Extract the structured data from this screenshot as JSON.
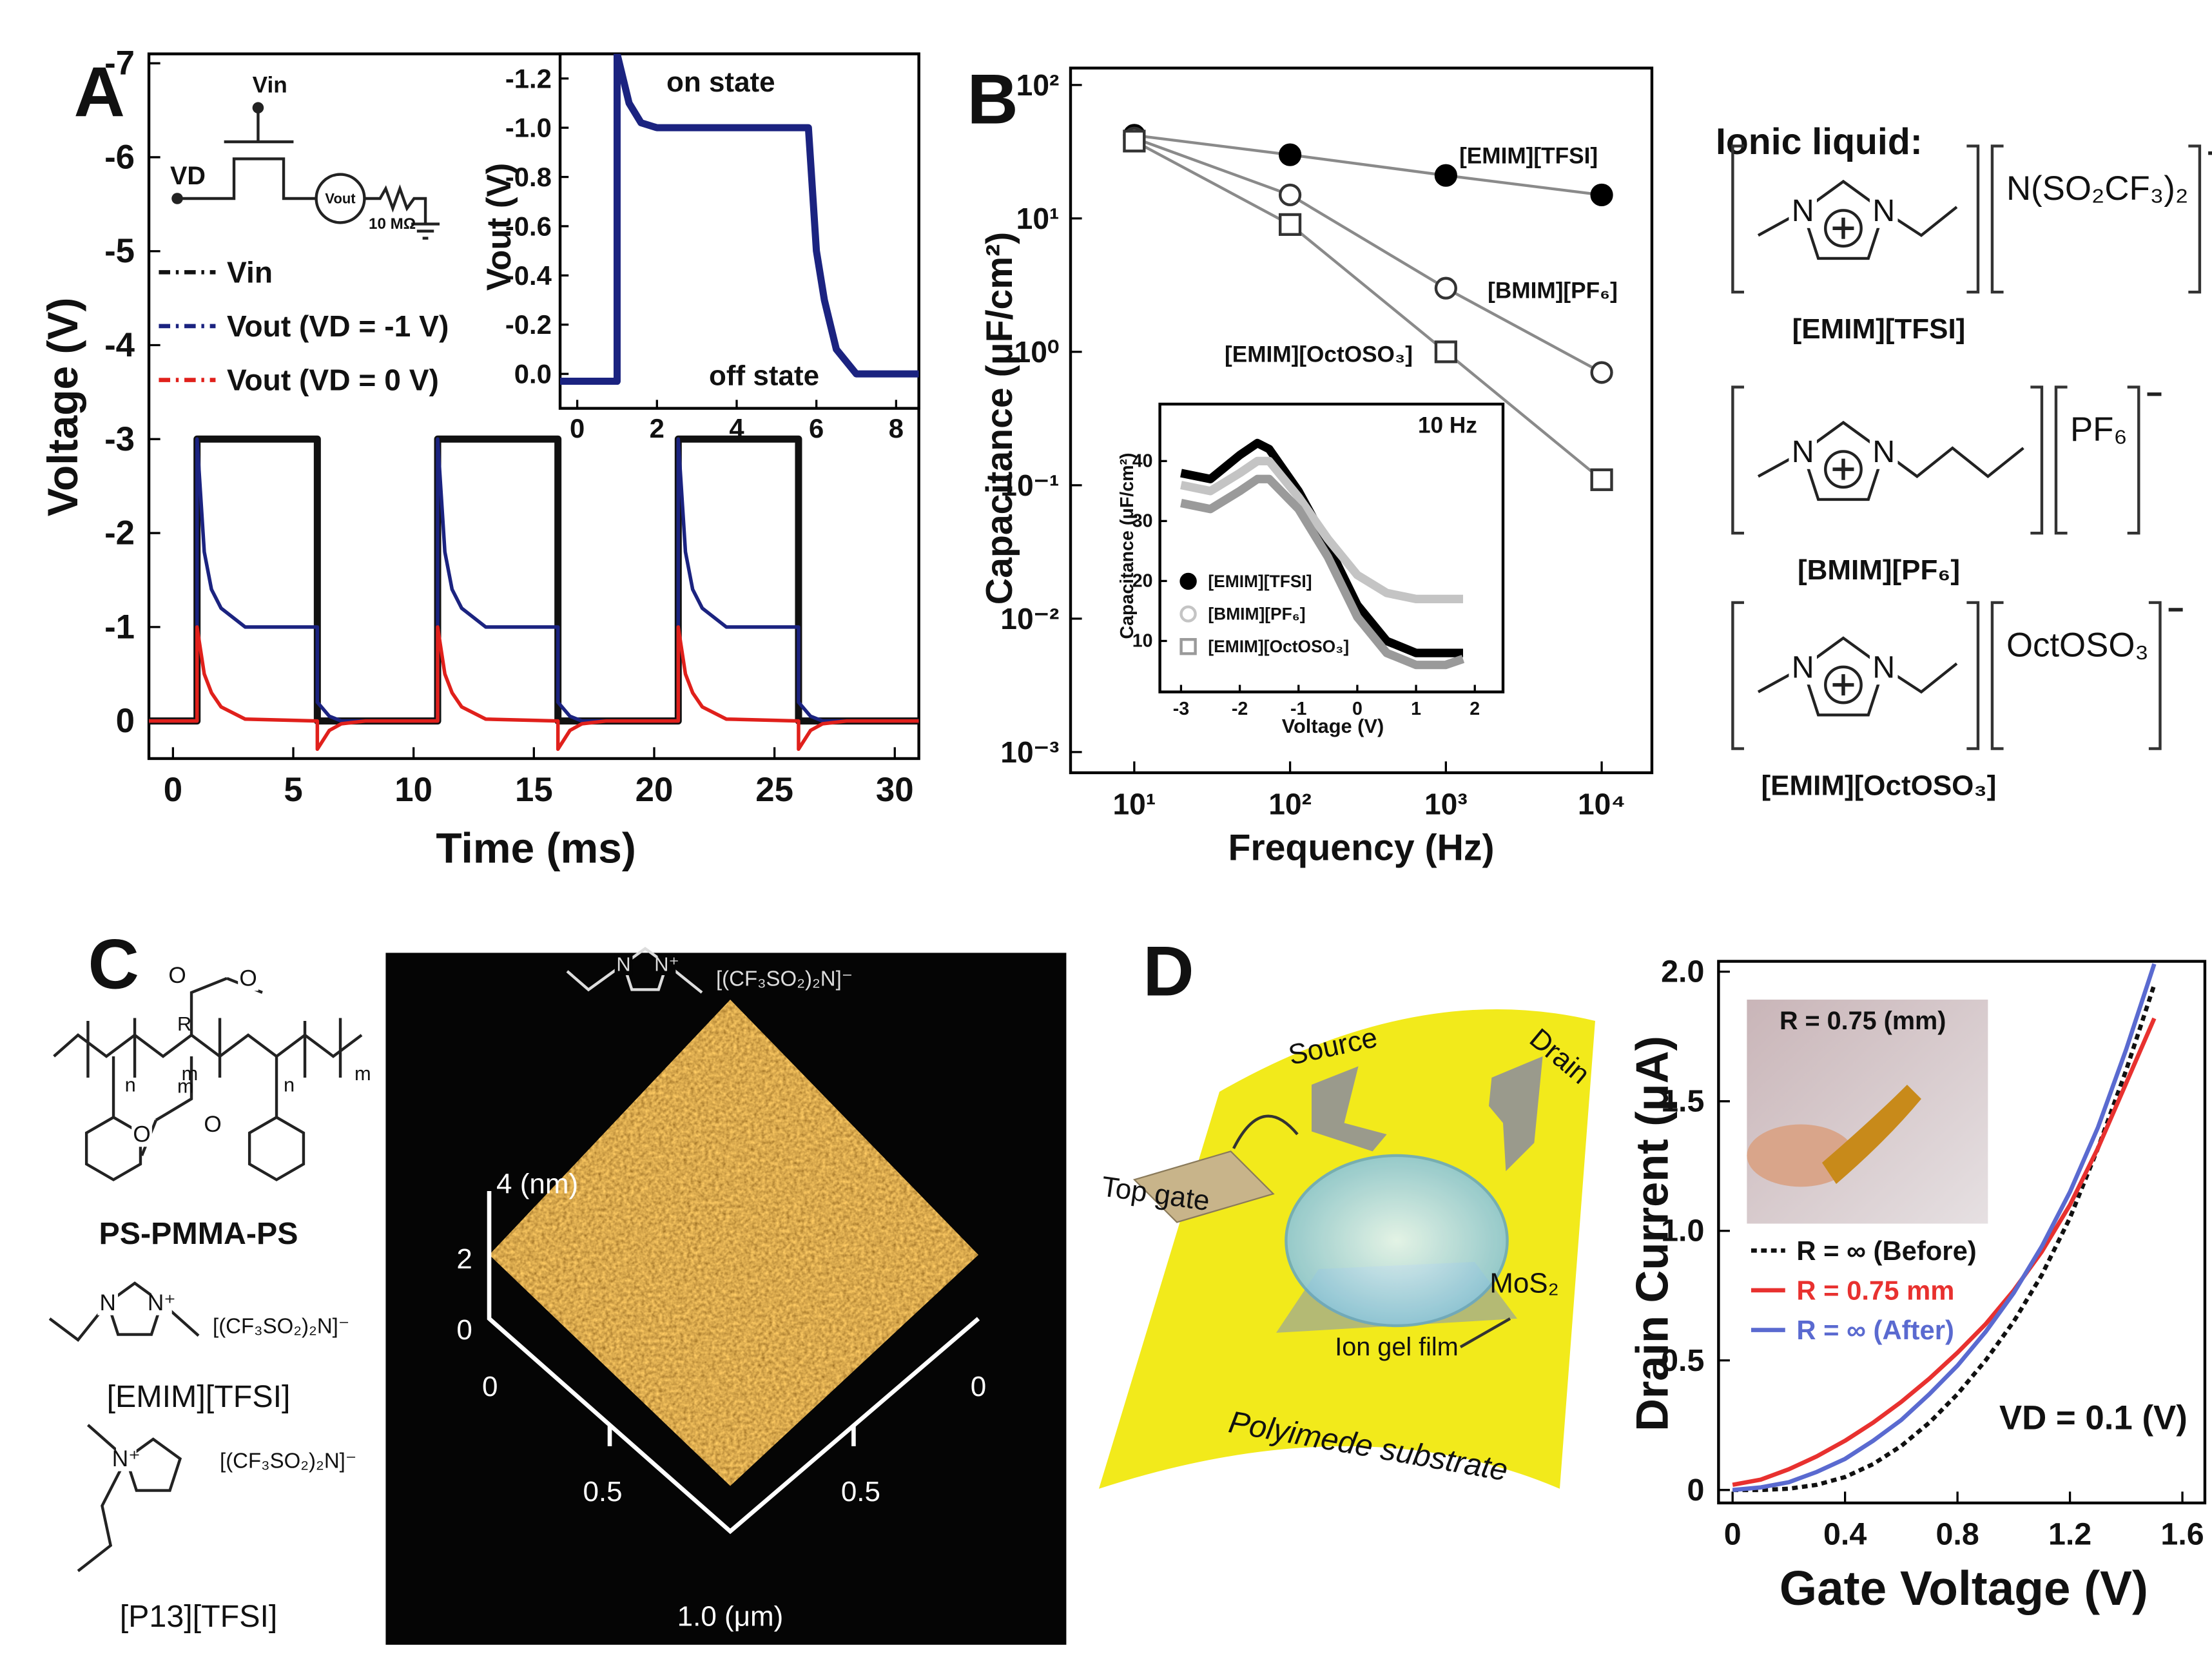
{
  "panels": [
    "A",
    "B",
    "C",
    "D"
  ],
  "chart_data": [
    {
      "type": "line",
      "xlabel": "Time (ms)",
      "ylabel": "Voltage (V)",
      "xlim": [
        -1,
        31
      ],
      "ylim": [
        0.4,
        -7.1
      ],
      "xticks": [
        0,
        5,
        10,
        15,
        20,
        25,
        30
      ],
      "yticks": [
        0,
        -1,
        -2,
        -3,
        -4,
        -5,
        -6,
        -7
      ],
      "x": [
        -1,
        1,
        1,
        1.3,
        1.6,
        2,
        3,
        6,
        6,
        6.5,
        7,
        8,
        11,
        11,
        11.3,
        11.6,
        12,
        13,
        16,
        16,
        16.5,
        17,
        18,
        21,
        21,
        21.3,
        21.6,
        22,
        23,
        26,
        26,
        26.5,
        27,
        28,
        31
      ],
      "series": [
        {
          "name": "Vin",
          "color": "#111111",
          "values": [
            0,
            0,
            -3,
            -3,
            -3,
            -3,
            -3,
            -3,
            0,
            0,
            0,
            0,
            0,
            -3,
            -3,
            -3,
            -3,
            -3,
            -3,
            0,
            0,
            0,
            0,
            0,
            -3,
            -3,
            -3,
            -3,
            -3,
            -3,
            0,
            0,
            0,
            0,
            0
          ]
        },
        {
          "name": "Vout (VD = -1 V)",
          "color": "#1b2380",
          "values": [
            0,
            0,
            -3,
            -1.8,
            -1.4,
            -1.2,
            -1.0,
            -1.0,
            -0.2,
            -0.05,
            0,
            0,
            0,
            -3,
            -1.8,
            -1.4,
            -1.2,
            -1.0,
            -1.0,
            -0.2,
            -0.05,
            0,
            0,
            0,
            -3,
            -1.8,
            -1.4,
            -1.2,
            -1.0,
            -1.0,
            -0.2,
            -0.05,
            0,
            0,
            0
          ]
        },
        {
          "name": "Vout (VD = 0 V)",
          "color": "#e0201b",
          "values": [
            0,
            0,
            -1,
            -0.5,
            -0.3,
            -0.15,
            -0.02,
            0,
            0.3,
            0.1,
            0.03,
            0,
            0,
            -1,
            -0.5,
            -0.3,
            -0.15,
            -0.02,
            0,
            0.3,
            0.1,
            0.03,
            0,
            0,
            -1,
            -0.5,
            -0.3,
            -0.15,
            -0.02,
            0,
            0.3,
            0.1,
            0.03,
            0,
            0
          ]
        }
      ]
    },
    {
      "type": "line",
      "ylabel": "Vout (V)",
      "xlim": [
        -0.43,
        8.57
      ],
      "ylim": [
        0.14,
        -1.3
      ],
      "xticks": [
        0,
        2,
        4,
        6,
        8
      ],
      "yticks": [
        -1.2,
        {
          "value": -1,
          "label": "-1.0"
        },
        -0.8,
        -0.6,
        -0.4,
        -0.2,
        {
          "value": 0,
          "label": "0.0"
        }
      ],
      "annotations": [
        "on state",
        "off state"
      ],
      "x": [
        -0.43,
        1,
        1,
        1.3,
        1.6,
        2,
        5.8,
        6,
        6.2,
        6.5,
        7,
        8.57
      ],
      "series": [
        {
          "color": "#1b2380",
          "values": [
            0.03,
            0.03,
            -1.3,
            -1.1,
            -1.02,
            -1.0,
            -1.0,
            -0.5,
            -0.3,
            -0.1,
            0.0,
            0.0
          ]
        }
      ]
    },
    {
      "type": "line",
      "xscale": "log",
      "yscale": "log",
      "xlabel": "Frequency (Hz)",
      "ylabel": "Capacitance (μF/cm²)",
      "xlim": [
        3.9,
        21000
      ],
      "ylim": [
        0.0007,
        134
      ],
      "xticks": [
        {
          "value": 10,
          "label": "10¹"
        },
        {
          "value": 100,
          "label": "10²"
        },
        {
          "value": 1000,
          "label": "10³"
        },
        {
          "value": 10000,
          "label": "10⁴"
        }
      ],
      "yticks": [
        {
          "value": 0.001,
          "label": "10⁻³"
        },
        {
          "value": 0.01,
          "label": "10⁻²"
        },
        {
          "value": 0.1,
          "label": "10⁻¹"
        },
        {
          "value": 1,
          "label": "10⁰"
        },
        {
          "value": 10,
          "label": "10¹"
        },
        {
          "value": 100,
          "label": "10²"
        }
      ],
      "x": [
        10,
        100,
        1000,
        10000
      ],
      "line_color": "#8a8a8a",
      "series": [
        {
          "name": "[EMIM][TFSI]",
          "color": "#000000",
          "marker": "circle-filled",
          "values": [
            42,
            30,
            21,
            15
          ]
        },
        {
          "name": "[BMIM][PF₆]",
          "color": "#333333",
          "marker": "circle-open",
          "values": [
            40,
            15,
            3,
            0.7
          ]
        },
        {
          "name": "[EMIM][OctOSO₃]",
          "color": "#333333",
          "marker": "square-open",
          "values": [
            38,
            9,
            1.0,
            0.11
          ]
        }
      ]
    },
    {
      "type": "line",
      "xlabel": "Voltage (V)",
      "ylabel": "Capacitance (μF/cm²)",
      "xlim": [
        -3.36,
        2.48
      ],
      "ylim": [
        1.5,
        49.5
      ],
      "xticks": [
        -3,
        -2,
        -1,
        0,
        1,
        2
      ],
      "yticks": [
        10,
        20,
        30,
        40
      ],
      "annotations": [
        "10 Hz"
      ],
      "x": [
        -3,
        -2.5,
        -2,
        -1.7,
        -1.5,
        -1,
        -0.5,
        0,
        0.5,
        1,
        1.5,
        1.8
      ],
      "series": [
        {
          "name": "[EMIM][TFSI]",
          "color": "#000000",
          "marker": "circle-filled",
          "values": [
            38,
            37,
            41,
            43,
            42,
            35,
            26,
            16,
            10,
            8,
            8,
            8
          ]
        },
        {
          "name": "[BMIM][PF₆]",
          "color": "#c4c4c4",
          "marker": "circle-open",
          "values": [
            36,
            35,
            38,
            40,
            40,
            34,
            27,
            21,
            18,
            17,
            17,
            17
          ]
        },
        {
          "name": "[EMIM][OctOSO₃]",
          "color": "#9a9a9a",
          "marker": "square-open",
          "values": [
            33,
            32,
            35,
            37,
            37,
            32,
            24,
            14,
            8,
            6,
            6,
            7
          ]
        }
      ]
    },
    {
      "type": "line",
      "xlabel": "Gate Voltage (V)",
      "ylabel": "Drain Current (μA)",
      "xlim": [
        -0.05,
        1.68
      ],
      "ylim": [
        -0.05,
        2.04
      ],
      "xticks": [
        0,
        0.4,
        0.8,
        1.2,
        1.6
      ],
      "yticks": [
        0,
        0.5,
        {
          "value": 1,
          "label": "1.0"
        },
        1.5,
        {
          "value": 2,
          "label": "2.0"
        }
      ],
      "annotations": [
        "VD = 0.1 (V)",
        "R = 0.75 (mm)"
      ],
      "x": [
        0,
        0.1,
        0.2,
        0.3,
        0.4,
        0.5,
        0.6,
        0.7,
        0.8,
        0.9,
        1.0,
        1.1,
        1.2,
        1.3,
        1.4,
        1.5
      ],
      "series": [
        {
          "name": "R = ∞ (Before)",
          "color": "#111111",
          "values": [
            0,
            0,
            0.005,
            0.02,
            0.05,
            0.1,
            0.17,
            0.26,
            0.37,
            0.5,
            0.65,
            0.83,
            1.05,
            1.32,
            1.62,
            1.95
          ]
        },
        {
          "name": "R = 0.75 mm",
          "color": "#e8312f",
          "values": [
            0.02,
            0.04,
            0.08,
            0.13,
            0.19,
            0.26,
            0.34,
            0.43,
            0.53,
            0.64,
            0.77,
            0.92,
            1.1,
            1.32,
            1.57,
            1.82
          ]
        },
        {
          "name": "R = ∞ (After)",
          "color": "#5a6ad0",
          "values": [
            0,
            0.01,
            0.03,
            0.07,
            0.12,
            0.19,
            0.27,
            0.37,
            0.48,
            0.61,
            0.76,
            0.94,
            1.15,
            1.4,
            1.7,
            2.03
          ]
        }
      ]
    }
  ],
  "circuit": {
    "labels": [
      "VD",
      "Vin",
      "Vout",
      "10 MΩ"
    ]
  },
  "ionic_liquid": {
    "title": "Ionic liquid:",
    "structures": [
      {
        "atoms": [
          "N",
          "N"
        ],
        "anion": "N(SO₂CF₃)₂",
        "name": "[EMIM][TFSI]"
      },
      {
        "atoms": [
          "N",
          "N"
        ],
        "anion": "PF₆",
        "name": "[BMIM][PF₆]"
      },
      {
        "atoms": [
          "N",
          "N"
        ],
        "anion": "OctOSO₃",
        "name": "[EMIM][OctOSO₃]"
      }
    ]
  },
  "panel_c": {
    "polymer": {
      "labels": [
        "O",
        "O",
        "O",
        "O",
        "n",
        "m",
        "R",
        "m",
        "n",
        "m"
      ],
      "name": "PS-PMMA-PS"
    },
    "ions": [
      {
        "atoms": [
          "N",
          "N⁺"
        ],
        "anion": "[(CF₃SO₂)₂N]⁻",
        "name": "[EMIM][TFSI]"
      },
      {
        "atoms": [
          "N⁺"
        ],
        "anion": "[(CF₃SO₂)₂N]⁻",
        "name": "[P13][TFSI]"
      }
    ],
    "afm": {
      "ion": {
        "atoms": [
          "N",
          "N⁺"
        ],
        "anion": "[(CF₃SO₂)₂N]⁻"
      },
      "z_label": "4 (nm)",
      "z_ticks": [
        "2",
        "0"
      ],
      "x_ticks": [
        "0",
        "0.5"
      ],
      "y_ticks": [
        "0",
        "0.5"
      ],
      "x_label": "1.0 (μm)"
    }
  },
  "device": {
    "labels": [
      "Source",
      "Drain",
      "Top gate",
      "MoS₂",
      "Ion gel film",
      "Polyimede substrate"
    ]
  }
}
